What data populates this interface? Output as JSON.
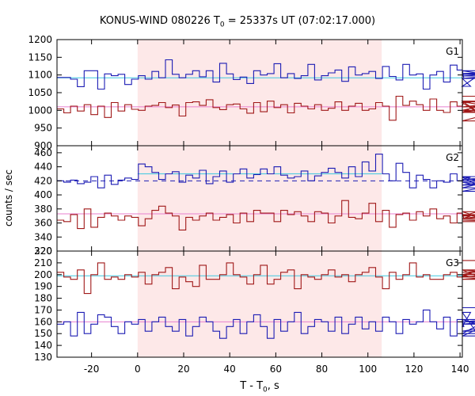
{
  "chart_data": {
    "type": "line",
    "title_main": "KONUS-WIND 080226 T",
    "title_sub": "0",
    "title_rest": " = 25337s UT (07:02:17.000)",
    "xlabel_main": "T - T",
    "xlabel_sub": "0",
    "xlabel_rest": ", s",
    "ylabel": "counts / sec",
    "xlim": [
      -35,
      141
    ],
    "xticks": [
      -20,
      0,
      20,
      40,
      60,
      80,
      100,
      120,
      140
    ],
    "highlight_interval": [
      0,
      106
    ],
    "highlight_color": "#fde8e8",
    "bin_start": -35,
    "bin_width": 2.944,
    "series_colors": {
      "upper": "#1c1cb4",
      "lower": "#a01818",
      "fit_blue": "#3ec8e0",
      "fit_red": "#e87fcf",
      "dashed": "#1c1cb4"
    },
    "panels": [
      {
        "label": "G1",
        "ylim": [
          900,
          1200
        ],
        "yticks": [
          900,
          950,
          1000,
          1050,
          1100,
          1150,
          1200
        ],
        "fit_upper": 1092,
        "fit_lower": 1010,
        "upper": [
          1093,
          1093,
          1088,
          1067,
          1112,
          1112,
          1060,
          1103,
          1098,
          1102,
          1073,
          1088,
          1098,
          1088,
          1110,
          1092,
          1143,
          1102,
          1092,
          1102,
          1112,
          1095,
          1112,
          1080,
          1133,
          1103,
          1087,
          1094,
          1076,
          1112,
          1100,
          1104,
          1132,
          1092,
          1104,
          1090,
          1098,
          1130,
          1086,
          1098,
          1106,
          1114,
          1082,
          1123,
          1100,
          1104,
          1110,
          1090,
          1124,
          1096,
          1086,
          1130,
          1100,
          1103,
          1060,
          1100,
          1110,
          1080,
          1128,
          1114,
          1090,
          1068,
          1097,
          1097,
          1104,
          1102,
          1112,
          1090,
          1104,
          1112
        ],
        "lower": [
          1004,
          993,
          1012,
          998,
          1016,
          988,
          1012,
          980,
          1022,
          998,
          1016,
          1003,
          1000,
          1012,
          1014,
          1022,
          1008,
          1015,
          984,
          1022,
          1024,
          1014,
          1030,
          1008,
          1002,
          1016,
          1018,
          1004,
          992,
          1022,
          996,
          1026,
          1008,
          1016,
          993,
          1020,
          1012,
          1004,
          1016,
          1000,
          1006,
          1024,
          1000,
          1012,
          1020,
          1000,
          1004,
          1022,
          1012,
          972,
          1040,
          1014,
          1026,
          1016,
          1000,
          1032,
          1000,
          994,
          1024,
          1012,
          1024,
          1022,
          994,
          1026,
          970,
          996,
          1010,
          1024,
          1000,
          1040
        ]
      },
      {
        "label": "G2",
        "ylim": [
          320,
          470
        ],
        "yticks": [
          320,
          340,
          360,
          380,
          400,
          420,
          440,
          460
        ],
        "fit_upper": 430,
        "fit_upper_range": [
          0,
          106
        ],
        "dashed_level": 420,
        "fit_lower": 373,
        "upper": [
          420,
          418,
          421,
          416,
          418,
          426,
          410,
          428,
          415,
          421,
          424,
          422,
          444,
          440,
          432,
          422,
          430,
          433,
          418,
          428,
          424,
          435,
          416,
          426,
          434,
          418,
          430,
          437,
          424,
          429,
          437,
          430,
          440,
          428,
          424,
          426,
          434,
          420,
          427,
          432,
          438,
          432,
          424,
          440,
          426,
          447,
          434,
          458,
          430,
          420,
          445,
          432,
          410,
          428,
          422,
          410,
          420,
          418,
          430,
          420,
          422,
          425,
          414,
          418,
          410,
          422,
          426,
          405,
          420,
          420
        ],
        "lower": [
          364,
          362,
          372,
          352,
          380,
          354,
          368,
          374,
          370,
          364,
          370,
          368,
          356,
          366,
          378,
          384,
          374,
          370,
          350,
          368,
          364,
          370,
          374,
          364,
          368,
          372,
          360,
          374,
          362,
          378,
          374,
          374,
          362,
          378,
          372,
          376,
          370,
          362,
          376,
          374,
          360,
          370,
          392,
          368,
          366,
          374,
          388,
          362,
          378,
          354,
          372,
          374,
          364,
          376,
          370,
          380,
          366,
          370,
          360,
          374,
          366,
          370,
          376,
          366,
          372,
          366,
          372,
          364,
          362,
          362
        ]
      },
      {
        "label": "G3",
        "ylim": [
          130,
          220
        ],
        "yticks": [
          130,
          140,
          150,
          160,
          170,
          180,
          190,
          200,
          210,
          220
        ],
        "fit_upper": 199,
        "fit_lower": 160,
        "upper": [
          202,
          198,
          196,
          204,
          184,
          200,
          210,
          196,
          198,
          196,
          200,
          198,
          202,
          192,
          200,
          202,
          206,
          188,
          198,
          194,
          190,
          208,
          196,
          196,
          200,
          210,
          200,
          198,
          192,
          200,
          208,
          192,
          196,
          202,
          204,
          188,
          200,
          198,
          196,
          200,
          204,
          198,
          200,
          194,
          200,
          202,
          206,
          198,
          188,
          202,
          196,
          200,
          210,
          198,
          200,
          196,
          196,
          200,
          202,
          198,
          200,
          198,
          204,
          196,
          198,
          200,
          202,
          204,
          200,
          212
        ],
        "lower": [
          158,
          160,
          148,
          168,
          150,
          158,
          166,
          164,
          156,
          150,
          160,
          158,
          162,
          152,
          160,
          164,
          156,
          152,
          162,
          148,
          156,
          164,
          160,
          152,
          146,
          156,
          162,
          150,
          160,
          166,
          156,
          146,
          162,
          152,
          160,
          168,
          150,
          156,
          162,
          160,
          152,
          164,
          150,
          158,
          164,
          154,
          160,
          152,
          164,
          160,
          150,
          162,
          158,
          160,
          170,
          160,
          154,
          164,
          148,
          162,
          156,
          168,
          150,
          160,
          162,
          152,
          158,
          162,
          148,
          172
        ]
      }
    ]
  }
}
